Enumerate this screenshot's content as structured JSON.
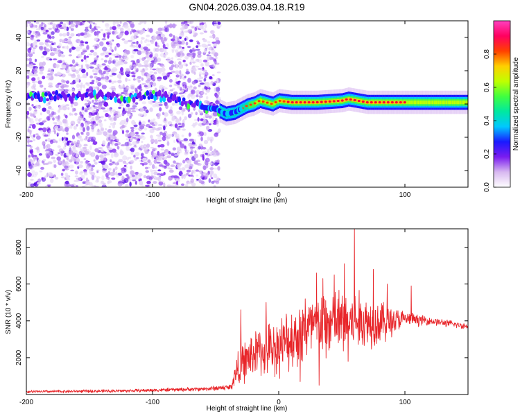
{
  "title": "GN04.2026.039.04.18.R19",
  "chart_data": [
    {
      "type": "heatmap",
      "title": "GN04.2026.039.04.18.R19",
      "xlabel": "Height of straight line (km)",
      "ylabel": "Frequency (Hz)",
      "xlim": [
        -200,
        150
      ],
      "ylim": [
        -50,
        50
      ],
      "xticks": [
        -200,
        -100,
        0,
        100
      ],
      "yticks": [
        -40,
        -20,
        0,
        20,
        40
      ],
      "colorbar": {
        "label": "Normalized spectral amplitude",
        "range": [
          0,
          1
        ],
        "ticks": [
          "0.0",
          "0.2",
          "0.4",
          "0.6",
          "0.8"
        ],
        "colors": [
          "#ffffff",
          "#d8b8f0",
          "#7a1cf0",
          "#1a1aff",
          "#00c8ff",
          "#00e8a0",
          "#40ff40",
          "#c0ff00",
          "#ffd000",
          "#ff4000",
          "#ff0060",
          "#ff40c0"
        ]
      },
      "noise_region_x": [
        -200,
        -47
      ],
      "ridge": [
        {
          "x": -200,
          "f": 4
        },
        {
          "x": -190,
          "f": 4
        },
        {
          "x": -175,
          "f": 5
        },
        {
          "x": -160,
          "f": 4
        },
        {
          "x": -140,
          "f": 5
        },
        {
          "x": -120,
          "f": 3
        },
        {
          "x": -100,
          "f": 6
        },
        {
          "x": -90,
          "f": 4
        },
        {
          "x": -80,
          "f": 2
        },
        {
          "x": -60,
          "f": -2
        },
        {
          "x": -50,
          "f": -3
        },
        {
          "x": -42,
          "f": -6
        },
        {
          "x": -35,
          "f": -5
        },
        {
          "x": -30,
          "f": -3
        },
        {
          "x": -25,
          "f": -1
        },
        {
          "x": -20,
          "f": 0
        },
        {
          "x": -15,
          "f": 2
        },
        {
          "x": -10,
          "f": 1
        },
        {
          "x": -5,
          "f": 0
        },
        {
          "x": 0,
          "f": 2
        },
        {
          "x": 10,
          "f": 1
        },
        {
          "x": 30,
          "f": 1
        },
        {
          "x": 50,
          "f": 2
        },
        {
          "x": 55,
          "f": 3
        },
        {
          "x": 70,
          "f": 1
        },
        {
          "x": 90,
          "f": 1
        },
        {
          "x": 100,
          "f": 1
        },
        {
          "x": 150,
          "f": 1
        }
      ]
    },
    {
      "type": "line",
      "xlabel": "Height of straight line (km)",
      "ylabel": "SNR (10 * v/v)",
      "xlim": [
        -200,
        150
      ],
      "ylim": [
        0,
        9000
      ],
      "xticks": [
        -200,
        -100,
        0,
        100
      ],
      "yticks": [
        2000,
        4000,
        6000,
        8000
      ],
      "line_color": "#e8262a",
      "envelope": [
        {
          "x": -200,
          "mean": 150,
          "spread": 90
        },
        {
          "x": -120,
          "mean": 200,
          "spread": 100
        },
        {
          "x": -60,
          "mean": 300,
          "spread": 130
        },
        {
          "x": -38,
          "mean": 400,
          "spread": 200
        },
        {
          "x": -32,
          "mean": 1500,
          "spread": 1200
        },
        {
          "x": -20,
          "mean": 2200,
          "spread": 1500
        },
        {
          "x": 0,
          "mean": 2600,
          "spread": 1800
        },
        {
          "x": 20,
          "mean": 3500,
          "spread": 2200
        },
        {
          "x": 40,
          "mean": 3800,
          "spread": 2400
        },
        {
          "x": 60,
          "mean": 4000,
          "spread": 2000
        },
        {
          "x": 80,
          "mean": 3900,
          "spread": 1500
        },
        {
          "x": 100,
          "mean": 4100,
          "spread": 500
        },
        {
          "x": 120,
          "mean": 4000,
          "spread": 250
        },
        {
          "x": 150,
          "mean": 3700,
          "spread": 200
        }
      ],
      "peaks": [
        {
          "x": 60,
          "y": 9000
        },
        {
          "x": 52,
          "y": 7100
        },
        {
          "x": 30,
          "y": 6600
        },
        {
          "x": 44,
          "y": 6500
        },
        {
          "x": 35,
          "y": 6300
        },
        {
          "x": 75,
          "y": 6800
        },
        {
          "x": 21,
          "y": 5200
        },
        {
          "x": 86,
          "y": 6000
        },
        {
          "x": 105,
          "y": 5900
        },
        {
          "x": 17,
          "y": 700
        },
        {
          "x": -10,
          "y": 5000
        },
        {
          "x": -30,
          "y": 4600
        },
        {
          "x": 32,
          "y": 500
        },
        {
          "x": 55,
          "y": 1800
        }
      ]
    }
  ]
}
